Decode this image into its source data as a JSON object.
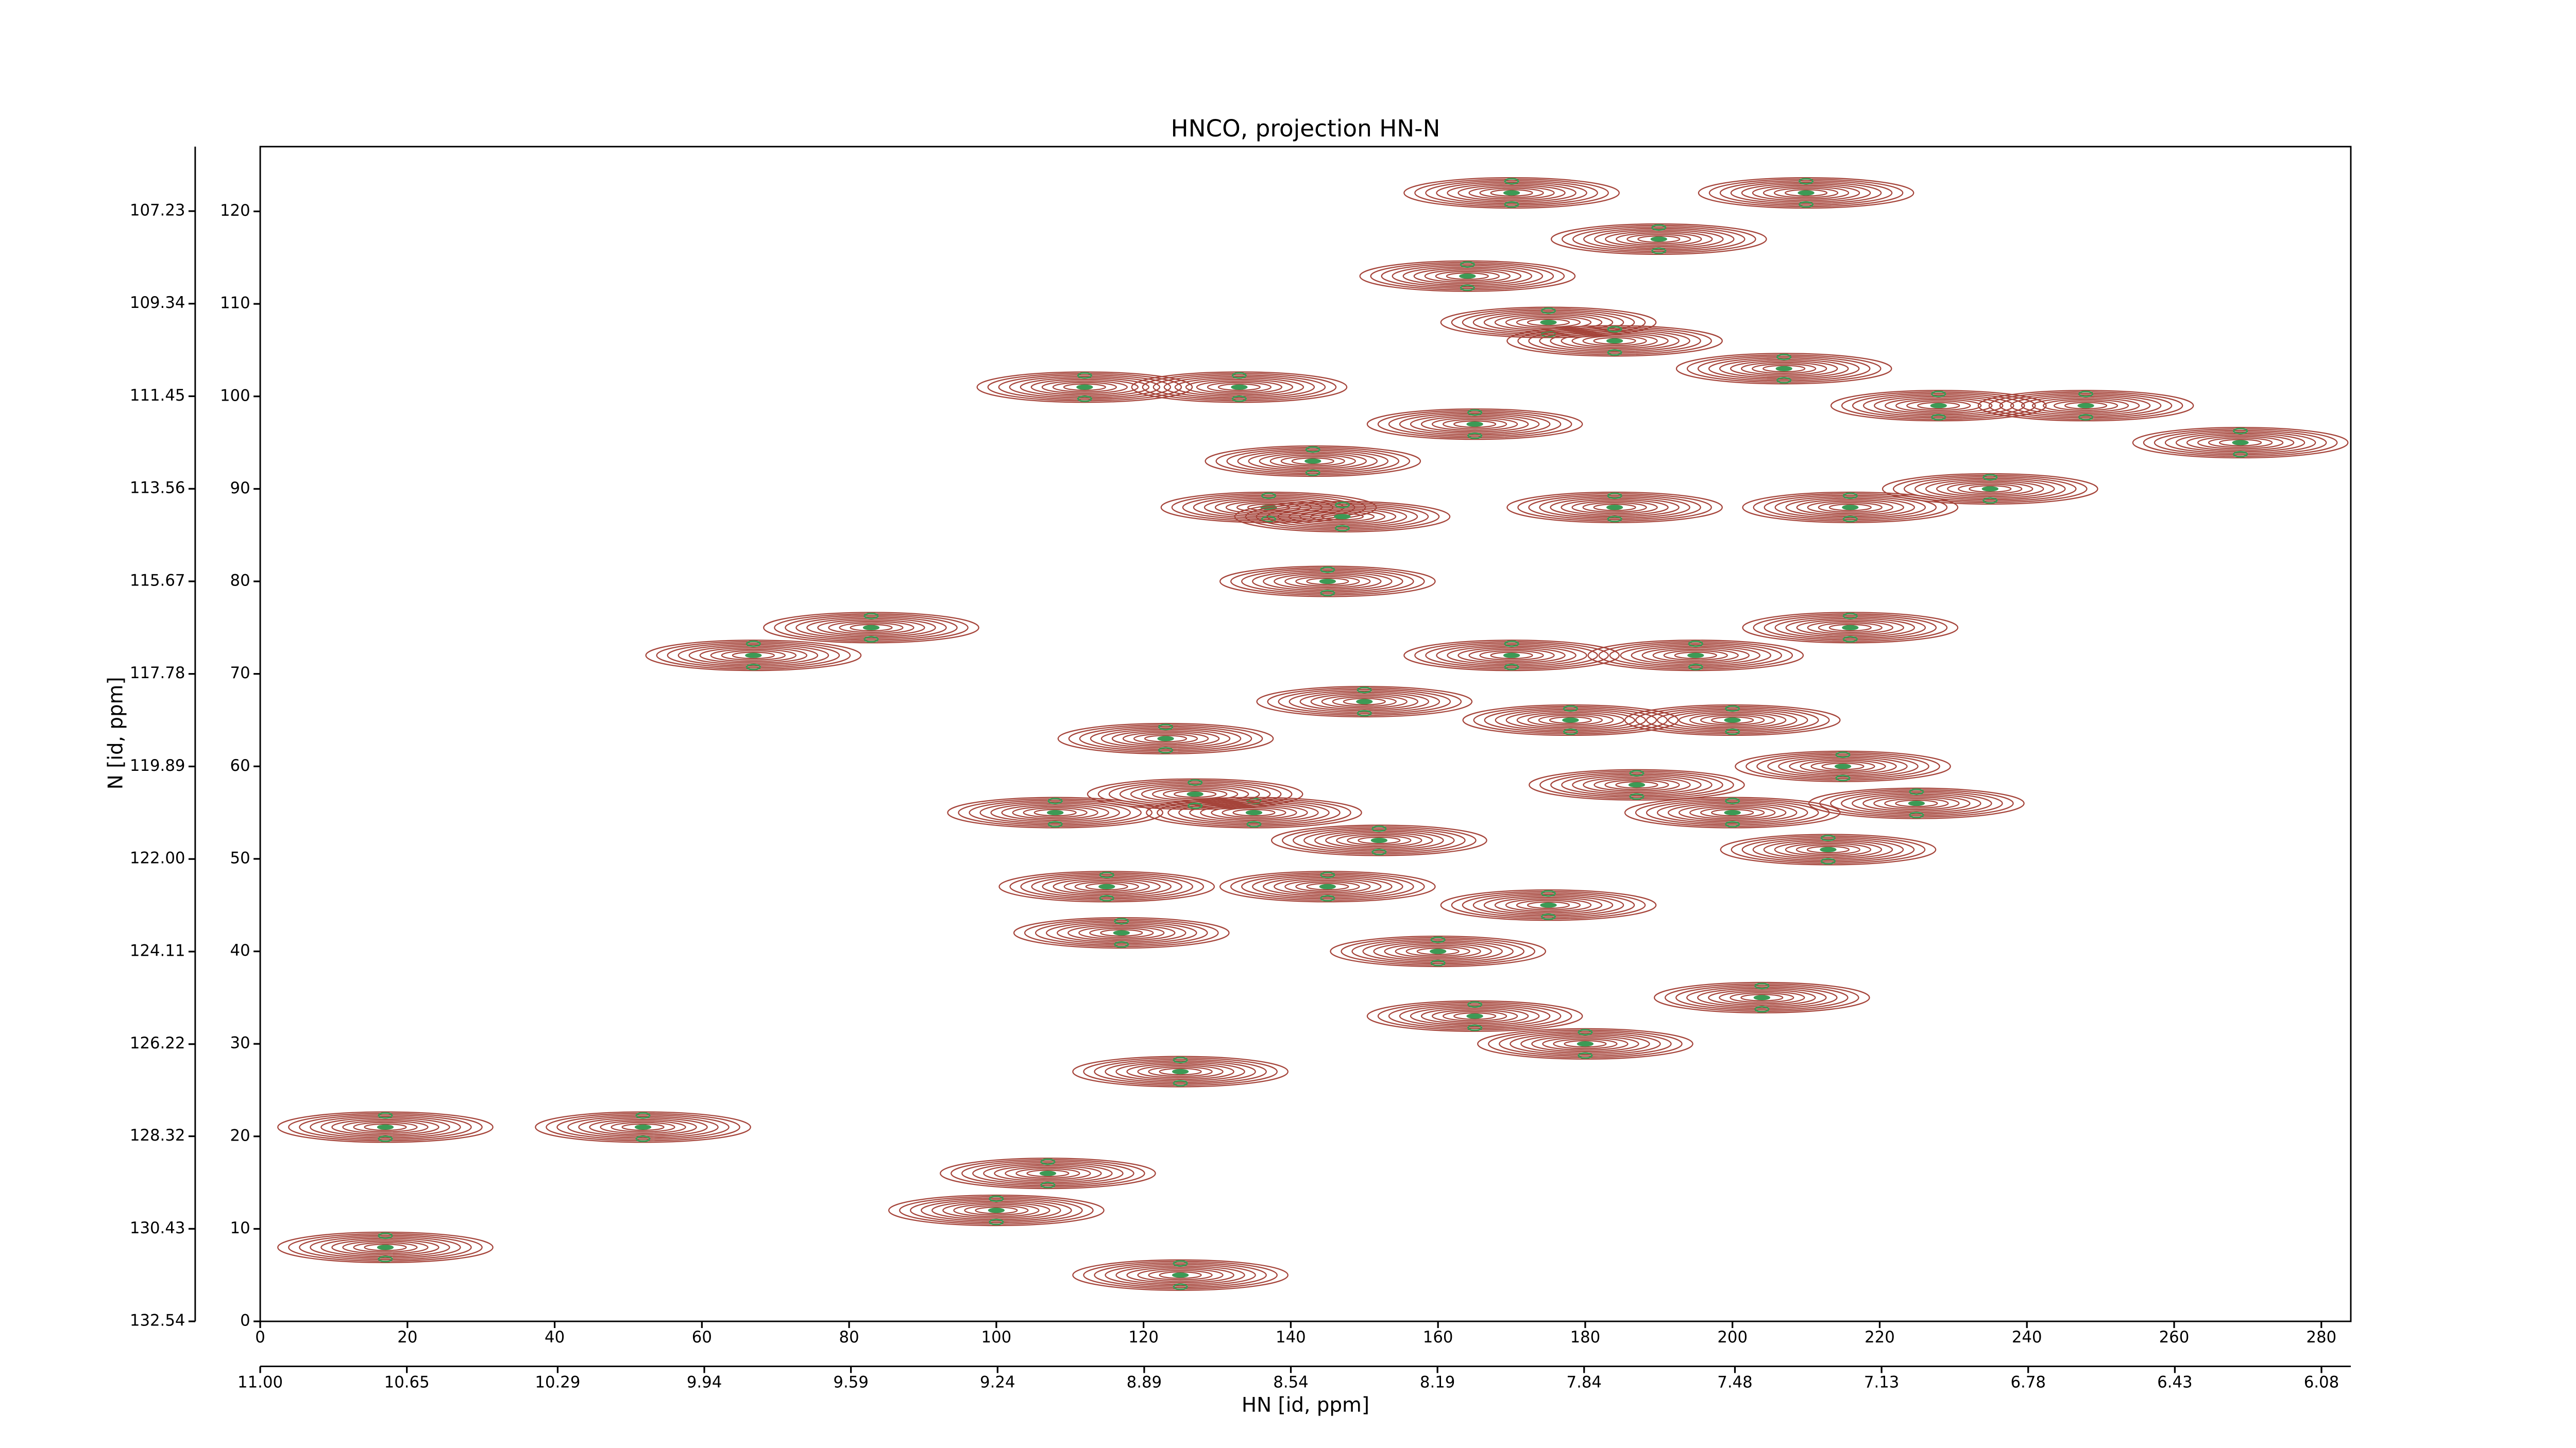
{
  "chart_data": {
    "type": "contour",
    "title": "HNCO, projection HN-N",
    "x_label": "HN [id, ppm]",
    "y_label": "N [id, ppm]",
    "xlim": [
      0,
      284
    ],
    "ylim": [
      0,
      127
    ],
    "xticks": [
      0,
      20,
      40,
      60,
      80,
      100,
      120,
      140,
      160,
      180,
      200,
      220,
      240,
      260,
      280
    ],
    "yticks": [
      0,
      10,
      20,
      30,
      40,
      50,
      60,
      70,
      80,
      90,
      100,
      110,
      120
    ],
    "x2lim": [
      11.0,
      6.01
    ],
    "x2ticks": [
      {
        "value": 11,
        "label": "11.00"
      },
      10.65,
      10.29,
      9.94,
      9.59,
      9.24,
      8.89,
      8.54,
      8.19,
      7.84,
      7.48,
      7.13,
      6.78,
      6.43,
      6.08
    ],
    "y2lim": [
      132.54,
      105.76
    ],
    "y2ticks": [
      132.54,
      130.43,
      128.32,
      126.22,
      124.11,
      {
        "value": 122,
        "label": "122.00"
      },
      119.89,
      117.78,
      115.67,
      113.56,
      111.45,
      109.34,
      107.23
    ],
    "x": [
      17,
      17,
      52,
      67,
      83,
      100,
      107,
      112,
      125,
      125,
      133,
      143,
      137,
      147,
      145,
      170,
      164,
      175,
      184,
      165,
      184,
      207,
      210,
      190,
      216,
      235,
      228,
      248,
      269,
      216,
      195,
      170,
      150,
      123,
      108,
      115,
      117,
      145,
      160,
      175,
      165,
      180,
      204,
      225,
      215,
      200,
      187,
      213,
      152,
      135,
      127,
      200,
      178
    ],
    "values": [
      8,
      21,
      21,
      72,
      75,
      12,
      16,
      101,
      5,
      27,
      101,
      93,
      88,
      87,
      80,
      122,
      113,
      108,
      106,
      97,
      88,
      103,
      122,
      117,
      88,
      90,
      99,
      99,
      95,
      75,
      72,
      72,
      67,
      63,
      55,
      47,
      42,
      47,
      40,
      45,
      33,
      30,
      35,
      56,
      60,
      55,
      58,
      51,
      52,
      55,
      57,
      65,
      65
    ],
    "color": "#a5443a",
    "negative_color": "#3c9a55"
  }
}
